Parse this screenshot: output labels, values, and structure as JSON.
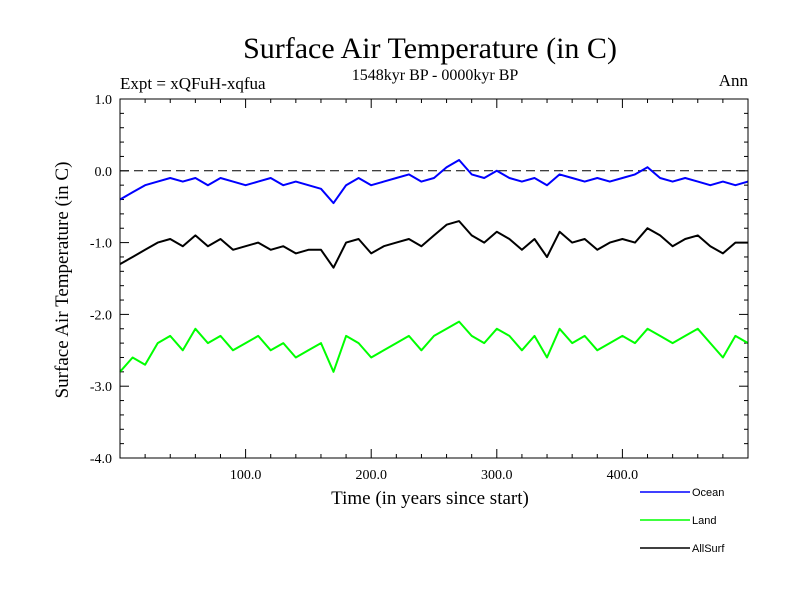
{
  "chart_data": {
    "type": "line",
    "title": "Surface Air Temperature (in C)",
    "subtitle": "1548kyr BP - 0000kyr BP",
    "expt_label": "Expt = xQFuH-xqfua",
    "season_label": "Ann",
    "xlabel": "Time (in years since start)",
    "ylabel": "Surface Air Temperature (in C)",
    "xlim": [
      0,
      500
    ],
    "ylim": [
      -4.0,
      1.0
    ],
    "x_ticks": [
      100,
      200,
      300,
      400
    ],
    "x_tick_labels": [
      "100.0",
      "200.0",
      "300.0",
      "400.0"
    ],
    "y_ticks": [
      1.0,
      0.0,
      -1.0,
      -2.0,
      -3.0,
      -4.0
    ],
    "y_tick_labels": [
      "1.0",
      "0.0",
      "-1.0",
      "-2.0",
      "-3.0",
      "-4.0"
    ],
    "reference_line": 0.0,
    "legend_position": "bottom-right",
    "series": [
      {
        "name": "Ocean",
        "color": "#0000ff",
        "x": [
          0,
          10,
          20,
          30,
          40,
          50,
          60,
          70,
          80,
          90,
          100,
          110,
          120,
          130,
          140,
          150,
          160,
          170,
          180,
          190,
          200,
          210,
          220,
          230,
          240,
          250,
          260,
          270,
          280,
          290,
          300,
          310,
          320,
          330,
          340,
          350,
          360,
          370,
          380,
          390,
          400,
          410,
          420,
          430,
          440,
          450,
          460,
          470,
          480,
          490,
          500
        ],
        "values": [
          -0.4,
          -0.3,
          -0.2,
          -0.15,
          -0.1,
          -0.15,
          -0.1,
          -0.2,
          -0.1,
          -0.15,
          -0.2,
          -0.15,
          -0.1,
          -0.2,
          -0.15,
          -0.2,
          -0.25,
          -0.45,
          -0.2,
          -0.1,
          -0.2,
          -0.15,
          -0.1,
          -0.05,
          -0.15,
          -0.1,
          0.05,
          0.15,
          -0.05,
          -0.1,
          0.0,
          -0.1,
          -0.15,
          -0.1,
          -0.2,
          -0.05,
          -0.1,
          -0.15,
          -0.1,
          -0.15,
          -0.1,
          -0.05,
          0.05,
          -0.1,
          -0.15,
          -0.1,
          -0.15,
          -0.2,
          -0.15,
          -0.2,
          -0.15
        ]
      },
      {
        "name": "Land",
        "color": "#00ff00",
        "x": [
          0,
          10,
          20,
          30,
          40,
          50,
          60,
          70,
          80,
          90,
          100,
          110,
          120,
          130,
          140,
          150,
          160,
          170,
          180,
          190,
          200,
          210,
          220,
          230,
          240,
          250,
          260,
          270,
          280,
          290,
          300,
          310,
          320,
          330,
          340,
          350,
          360,
          370,
          380,
          390,
          400,
          410,
          420,
          430,
          440,
          450,
          460,
          470,
          480,
          490,
          500
        ],
        "values": [
          -2.8,
          -2.6,
          -2.7,
          -2.4,
          -2.3,
          -2.5,
          -2.2,
          -2.4,
          -2.3,
          -2.5,
          -2.4,
          -2.3,
          -2.5,
          -2.4,
          -2.6,
          -2.5,
          -2.4,
          -2.8,
          -2.3,
          -2.4,
          -2.6,
          -2.5,
          -2.4,
          -2.3,
          -2.5,
          -2.3,
          -2.2,
          -2.1,
          -2.3,
          -2.4,
          -2.2,
          -2.3,
          -2.5,
          -2.3,
          -2.6,
          -2.2,
          -2.4,
          -2.3,
          -2.5,
          -2.4,
          -2.3,
          -2.4,
          -2.2,
          -2.3,
          -2.4,
          -2.3,
          -2.2,
          -2.4,
          -2.6,
          -2.3,
          -2.4
        ]
      },
      {
        "name": "AllSurf",
        "color": "#000000",
        "x": [
          0,
          10,
          20,
          30,
          40,
          50,
          60,
          70,
          80,
          90,
          100,
          110,
          120,
          130,
          140,
          150,
          160,
          170,
          180,
          190,
          200,
          210,
          220,
          230,
          240,
          250,
          260,
          270,
          280,
          290,
          300,
          310,
          320,
          330,
          340,
          350,
          360,
          370,
          380,
          390,
          400,
          410,
          420,
          430,
          440,
          450,
          460,
          470,
          480,
          490,
          500
        ],
        "values": [
          -1.3,
          -1.2,
          -1.1,
          -1.0,
          -0.95,
          -1.05,
          -0.9,
          -1.05,
          -0.95,
          -1.1,
          -1.05,
          -1.0,
          -1.1,
          -1.05,
          -1.15,
          -1.1,
          -1.1,
          -1.35,
          -1.0,
          -0.95,
          -1.15,
          -1.05,
          -1.0,
          -0.95,
          -1.05,
          -0.9,
          -0.75,
          -0.7,
          -0.9,
          -1.0,
          -0.85,
          -0.95,
          -1.1,
          -0.95,
          -1.2,
          -0.85,
          -1.0,
          -0.95,
          -1.1,
          -1.0,
          -0.95,
          -1.0,
          -0.8,
          -0.9,
          -1.05,
          -0.95,
          -0.9,
          -1.05,
          -1.15,
          -1.0,
          -1.0
        ]
      }
    ]
  }
}
